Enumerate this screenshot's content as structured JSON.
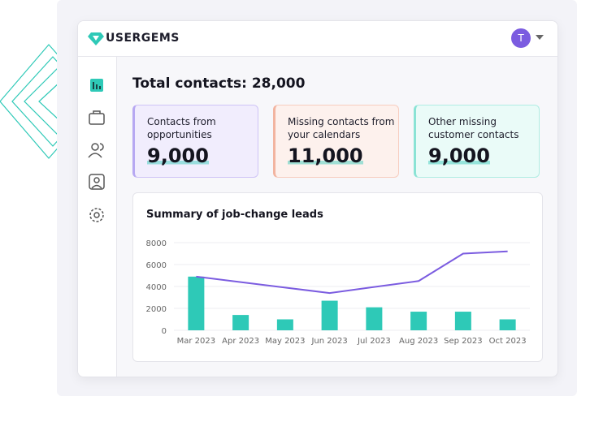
{
  "header": {
    "logo": "USERGEMS",
    "avatar": "T"
  },
  "dashboard": {
    "title": "Total contacts: 28,000",
    "cards": [
      {
        "label": "Contacts from opportunities",
        "value": "9,000"
      },
      {
        "label": "Missing contacts from your calendars",
        "value": "11,000"
      },
      {
        "label": "Other missing customer contacts",
        "value": "9,000"
      }
    ]
  },
  "chart_data": {
    "type": "bar",
    "title": "Summary of job-change leads",
    "categories": [
      "Mar 2023",
      "Apr 2023",
      "May 2023",
      "Jun 2023",
      "Jul 2023",
      "Aug 2023",
      "Sep 2023",
      "Oct 2023"
    ],
    "series": [
      {
        "type": "bar",
        "color": "#2ec9b7",
        "values": [
          4900,
          1400,
          1000,
          2700,
          2100,
          1700,
          1700,
          1000
        ]
      },
      {
        "type": "line",
        "color": "#7b5ce0",
        "values": [
          4900,
          4400,
          3900,
          3400,
          3950,
          4500,
          7000,
          7200
        ]
      }
    ],
    "ylim": [
      0,
      8000
    ],
    "yticks": [
      0,
      2000,
      4000,
      6000,
      8000
    ],
    "grid": true
  }
}
